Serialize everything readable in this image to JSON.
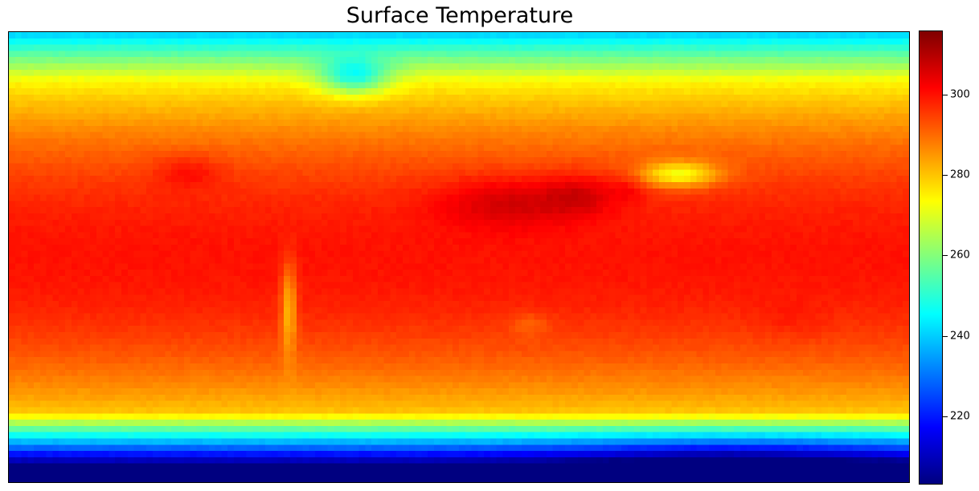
{
  "title": "Surface Temperature",
  "colorbar": {
    "colormap": "jet",
    "vmin": 203,
    "vmax": 316,
    "ticks": [
      220,
      240,
      260,
      280,
      300
    ],
    "tick_labels": [
      "220",
      "240",
      "260",
      "280",
      "300"
    ]
  },
  "map": {
    "variable": "surface temperature",
    "projection": "equirectangular",
    "grid": false
  }
}
